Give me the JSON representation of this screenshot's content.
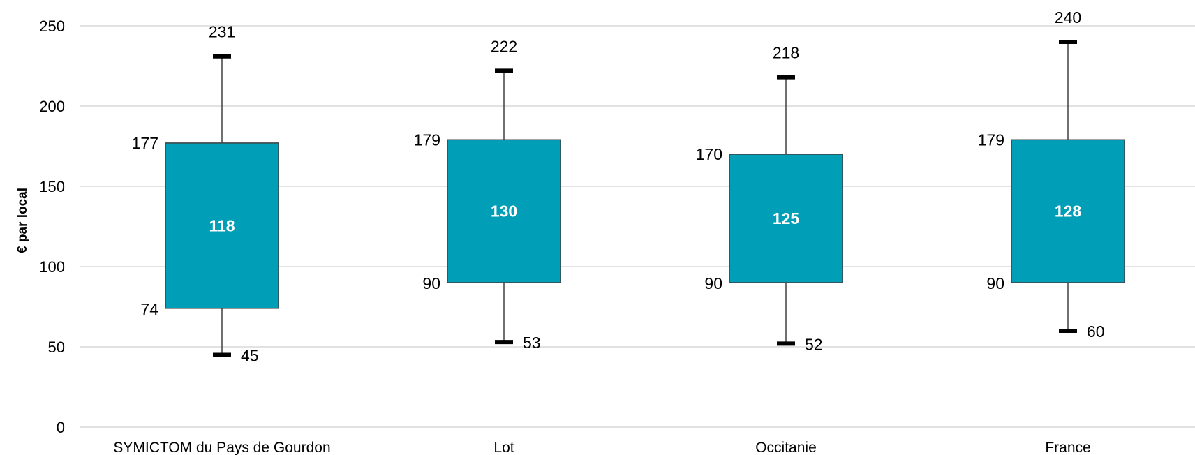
{
  "chart_data": {
    "type": "box",
    "title": "",
    "ylabel": "€ par local",
    "xlabel": "",
    "ylim": [
      0,
      250
    ],
    "yticks": [
      0,
      50,
      100,
      150,
      200,
      250
    ],
    "grid": true,
    "box_color": "#009fb7",
    "categories": [
      "SYMICTOM du Pays de Gourdon",
      "Lot",
      "Occitanie",
      "France"
    ],
    "series": [
      {
        "min": 45,
        "q1": 74,
        "median": 118,
        "q3": 177,
        "max": 231
      },
      {
        "min": 53,
        "q1": 90,
        "median": 130,
        "q3": 179,
        "max": 222
      },
      {
        "min": 52,
        "q1": 90,
        "median": 125,
        "q3": 170,
        "max": 218
      },
      {
        "min": 60,
        "q1": 90,
        "median": 128,
        "q3": 179,
        "max": 240
      }
    ]
  }
}
